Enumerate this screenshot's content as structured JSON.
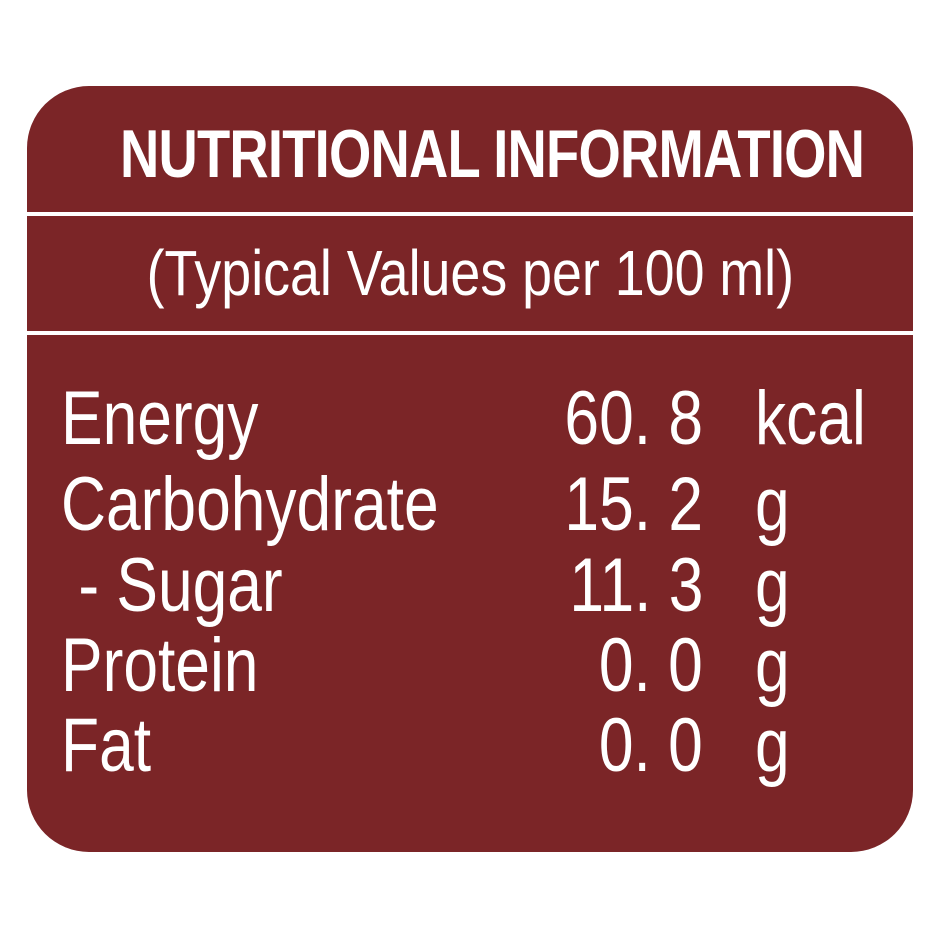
{
  "panel": {
    "background_color": "#7b2527",
    "text_color": "#ffffff",
    "title": "NUTRITIONAL INFORMATION",
    "subtitle": "(Typical Values per 100 ml)"
  },
  "nutrients": [
    {
      "label": "Energy",
      "value": "60. 8",
      "unit": "kcal"
    },
    {
      "label": "Carbohydrate",
      "value": "15. 2",
      "unit": "g"
    },
    {
      "label": " - Sugar",
      "value": "11. 3",
      "unit": "g"
    },
    {
      "label": "Protein",
      "value": "0. 0",
      "unit": "g"
    },
    {
      "label": "Fat",
      "value": "0. 0",
      "unit": "g"
    }
  ]
}
